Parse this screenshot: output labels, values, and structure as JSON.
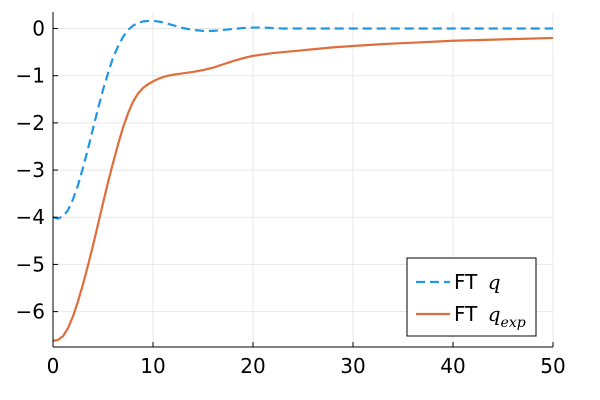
{
  "chart_data": {
    "type": "line",
    "xlim": [
      0,
      50
    ],
    "ylim": [
      -6.75,
      0.35
    ],
    "x_ticks": [
      0,
      10,
      20,
      30,
      40,
      50
    ],
    "y_ticks": [
      0,
      -1,
      -2,
      -3,
      -4,
      -5,
      -6
    ],
    "x_tick_labels": [
      "0",
      "10",
      "20",
      "30",
      "40",
      "50"
    ],
    "y_tick_labels": [
      "0",
      "−1",
      "−2",
      "−3",
      "−4",
      "−5",
      "−6"
    ],
    "grid": true,
    "legend_position": "bottom-right",
    "series": [
      {
        "name": "FT q",
        "legend_prefix": "FT",
        "legend_symbol": "q",
        "legend_subscript": "",
        "color": "#1f96e6",
        "style": "dashed",
        "x": [
          0,
          0.5,
          1,
          1.5,
          2,
          2.5,
          3,
          3.5,
          4,
          4.5,
          5,
          5.5,
          6,
          6.5,
          7,
          7.5,
          8,
          8.5,
          9,
          9.5,
          10,
          10.5,
          11,
          11.5,
          12,
          12.5,
          13,
          14,
          15,
          16,
          17,
          18,
          19,
          20,
          21,
          22,
          23,
          24,
          26,
          28,
          30,
          35,
          40,
          45,
          50
        ],
        "y": [
          -4.0,
          -4.03,
          -3.98,
          -3.85,
          -3.62,
          -3.32,
          -2.95,
          -2.55,
          -2.12,
          -1.7,
          -1.3,
          -0.95,
          -0.62,
          -0.38,
          -0.18,
          -0.03,
          0.06,
          0.12,
          0.15,
          0.16,
          0.16,
          0.15,
          0.13,
          0.1,
          0.07,
          0.04,
          0.01,
          -0.03,
          -0.05,
          -0.05,
          -0.03,
          -0.01,
          0.01,
          0.02,
          0.02,
          0.01,
          0.0,
          0.0,
          0.0,
          0.0,
          0.0,
          0.0,
          0.0,
          0.0,
          0.0
        ]
      },
      {
        "name": "FT q_exp",
        "legend_prefix": "FT",
        "legend_symbol": "q",
        "legend_subscript": "exp",
        "color": "#e06d3a",
        "style": "solid",
        "x": [
          0,
          0.5,
          1,
          1.5,
          2,
          2.5,
          3,
          3.5,
          4,
          4.5,
          5,
          5.5,
          6,
          6.5,
          7,
          7.5,
          8,
          8.5,
          9,
          9.5,
          10,
          10.5,
          11,
          11.5,
          12,
          13,
          14,
          15,
          16,
          17,
          18,
          19,
          20,
          21,
          22,
          24,
          26,
          28,
          30,
          33,
          36,
          40,
          45,
          50
        ],
        "y": [
          -6.62,
          -6.6,
          -6.52,
          -6.35,
          -6.1,
          -5.78,
          -5.42,
          -5.02,
          -4.6,
          -4.15,
          -3.7,
          -3.26,
          -2.85,
          -2.46,
          -2.1,
          -1.8,
          -1.55,
          -1.38,
          -1.26,
          -1.18,
          -1.12,
          -1.07,
          -1.03,
          -1.0,
          -0.98,
          -0.95,
          -0.92,
          -0.88,
          -0.83,
          -0.76,
          -0.69,
          -0.63,
          -0.58,
          -0.55,
          -0.52,
          -0.48,
          -0.44,
          -0.4,
          -0.37,
          -0.33,
          -0.3,
          -0.26,
          -0.23,
          -0.2
        ]
      }
    ]
  }
}
